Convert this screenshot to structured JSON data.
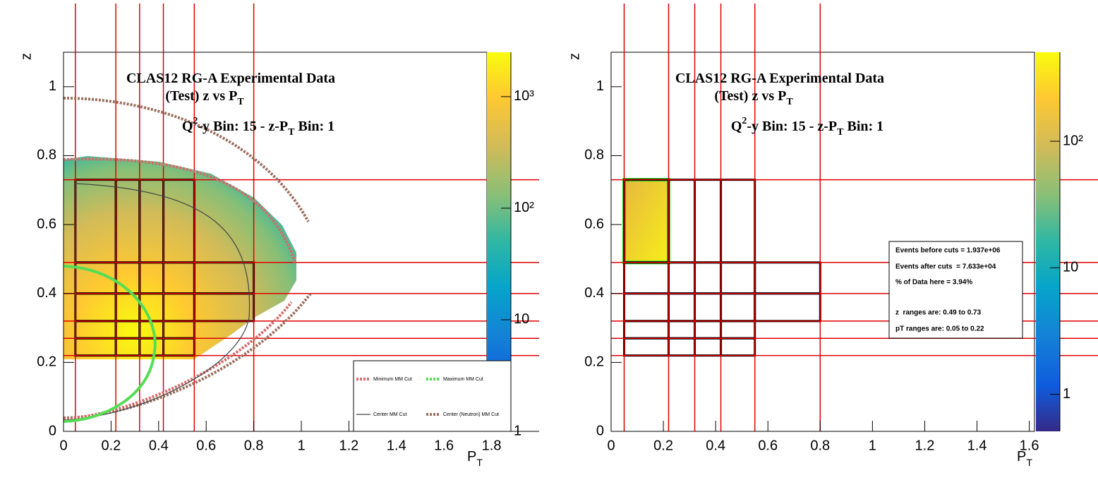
{
  "chart_data": [
    {
      "type": "heatmap",
      "title_lines": [
        [
          {
            "text": "CLAS12 RG-A Experimental Data"
          }
        ],
        [
          {
            "text": "(Test) z vs P"
          },
          {
            "text": "T",
            "shift": "sub"
          }
        ],
        [
          {
            "text": "Q"
          },
          {
            "text": "2",
            "shift": "sup"
          },
          {
            "text": "-y Bin: 15 - z-P"
          },
          {
            "text": "T",
            "shift": "sub"
          },
          {
            "text": " Bin: 1"
          }
        ]
      ],
      "x_label": [
        {
          "text": "P"
        },
        {
          "text": "T",
          "shift": "sub"
        }
      ],
      "y_label": "z",
      "xlim": [
        0,
        2
      ],
      "ylim": [
        0,
        1.1
      ],
      "xticks": [
        0,
        0.2,
        0.4,
        0.6,
        0.8,
        1,
        1.2,
        1.4,
        1.6,
        1.8
      ],
      "yticks": [
        0,
        0.2,
        0.4,
        0.6,
        0.8,
        1
      ],
      "colorbar": {
        "scale": "log",
        "lim": [
          1,
          2500
        ],
        "ticks": [
          1,
          10,
          {
            "value": 100,
            "label": "10²"
          },
          {
            "value": 1000,
            "label": "10³"
          }
        ]
      },
      "cut_lines": {
        "color": "#e00000",
        "pT": [
          0.05,
          0.22,
          0.32,
          0.42,
          0.55,
          0.8
        ],
        "z": [
          0.22,
          0.27,
          0.32,
          0.4,
          0.49,
          0.73
        ]
      },
      "bins": [
        {
          "z": [
            0.22,
            0.27
          ],
          "pT": [
            0.05,
            0.22,
            0.32,
            0.42,
            0.55
          ]
        },
        {
          "z": [
            0.27,
            0.32
          ],
          "pT": [
            0.05,
            0.22,
            0.32,
            0.42,
            0.55
          ]
        },
        {
          "z": [
            0.32,
            0.4
          ],
          "pT": [
            0.05,
            0.22,
            0.32,
            0.42,
            0.55,
            0.8
          ]
        },
        {
          "z": [
            0.4,
            0.49
          ],
          "pT": [
            0.05,
            0.22,
            0.32,
            0.42,
            0.55,
            0.8
          ]
        },
        {
          "z": [
            0.49,
            0.73
          ],
          "pT": [
            0.05,
            0.22,
            0.32,
            0.42,
            0.55
          ]
        }
      ],
      "legend": [
        {
          "name": "Minimum MM Cut",
          "color": "#d46a6a",
          "style": "dotted"
        },
        {
          "name": "Maximum MM Cut",
          "color": "#55dd55",
          "style": "dotted"
        },
        {
          "name": "Center MM Cut",
          "color": "#444444",
          "style": "solid"
        },
        {
          "name": "Center (Neutron) MM Cut",
          "color": "#9a6f5e",
          "style": "dotted"
        }
      ]
    },
    {
      "type": "heatmap",
      "title_lines": [
        [
          {
            "text": "CLAS12 RG-A Experimental Data"
          }
        ],
        [
          {
            "text": "(Test) z vs P"
          },
          {
            "text": "T",
            "shift": "sub"
          }
        ],
        [
          {
            "text": "Q"
          },
          {
            "text": "2",
            "shift": "sup"
          },
          {
            "text": "-y Bin: 15 - z-P"
          },
          {
            "text": "T",
            "shift": "sub"
          },
          {
            "text": " Bin: 1"
          }
        ]
      ],
      "x_label": [
        {
          "text": "P"
        },
        {
          "text": "T",
          "shift": "sub"
        }
      ],
      "y_label": "z",
      "xlim": [
        0,
        1.62
      ],
      "ylim": [
        0,
        1.1
      ],
      "xticks": [
        0,
        0.2,
        0.4,
        0.6,
        0.8,
        1,
        1.2,
        1.4,
        1.6
      ],
      "yticks": [
        0,
        0.2,
        0.4,
        0.6,
        0.8,
        1
      ],
      "colorbar": {
        "scale": "log",
        "lim": [
          0.51,
          505
        ],
        "ticks": [
          1,
          10,
          {
            "value": 100,
            "label": "10²"
          }
        ]
      },
      "cut_lines": {
        "color": "#e00000",
        "pT": [
          0.05,
          0.22,
          0.32,
          0.42,
          0.55,
          0.8
        ],
        "z": [
          0.22,
          0.27,
          0.32,
          0.4,
          0.49,
          0.73
        ]
      },
      "bins": [
        {
          "z": [
            0.22,
            0.27
          ],
          "pT": [
            0.05,
            0.22,
            0.32,
            0.42,
            0.55
          ]
        },
        {
          "z": [
            0.27,
            0.32
          ],
          "pT": [
            0.05,
            0.22,
            0.32,
            0.42,
            0.55
          ]
        },
        {
          "z": [
            0.32,
            0.4
          ],
          "pT": [
            0.05,
            0.22,
            0.32,
            0.42,
            0.55,
            0.8
          ]
        },
        {
          "z": [
            0.4,
            0.49
          ],
          "pT": [
            0.05,
            0.22,
            0.32,
            0.42,
            0.55,
            0.8
          ]
        },
        {
          "z": [
            0.49,
            0.73
          ],
          "pT": [
            0.05,
            0.22,
            0.32,
            0.42,
            0.55
          ]
        }
      ],
      "highlight": {
        "color": "#22ee22",
        "pT": [
          0.05,
          0.22
        ],
        "z": [
          0.49,
          0.73
        ]
      },
      "stats_lines": [
        "Events before cuts = 1.937e+06",
        "Events after cuts  = 7.633e+04",
        "% of Data here = 3.94%",
        "z  ranges are: 0.49 to 0.73",
        "pT ranges are: 0.05 to 0.22"
      ]
    }
  ]
}
